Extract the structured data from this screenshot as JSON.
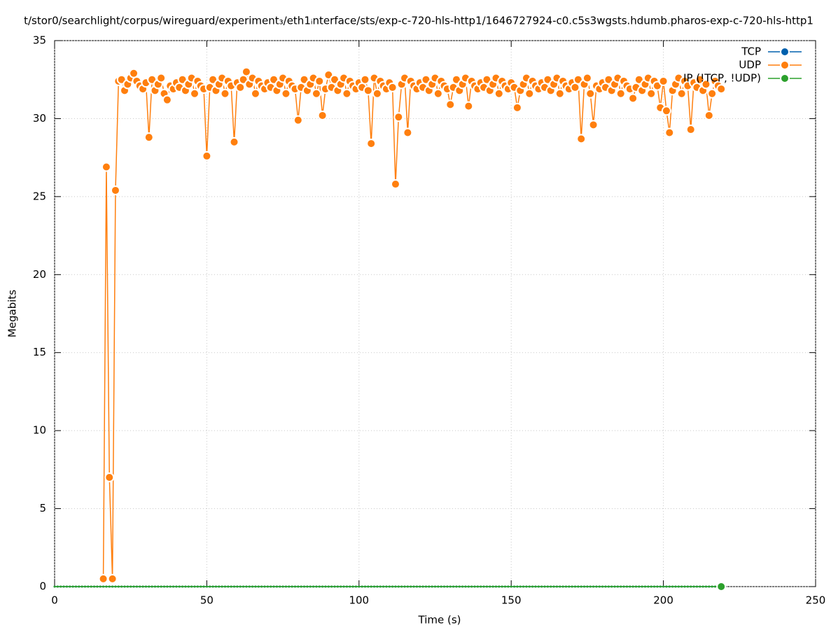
{
  "chart_data": {
    "type": "line",
    "title": "t/stor0/searchlight/corpus/wireguard/experiment₃/eth1ᵢnterface/sts/exp-c-720-hls-http1/1646727924-c0.c5s3wgsts.hdumb.pharos-exp-c-720-hls-http1",
    "xlabel": "Time (s)",
    "ylabel": "Megabits",
    "xlim": [
      0,
      250
    ],
    "xticks": [
      0,
      50,
      100,
      150,
      200,
      250
    ],
    "ylim": [
      0,
      35
    ],
    "yticks": [
      0,
      5,
      10,
      15,
      20,
      25,
      30,
      35
    ],
    "grid": true,
    "legend": "top-right",
    "x": [
      0,
      1,
      2,
      3,
      4,
      5,
      6,
      7,
      8,
      9,
      10,
      11,
      12,
      13,
      14,
      15,
      16,
      17,
      18,
      19,
      20,
      21,
      22,
      23,
      24,
      25,
      26,
      27,
      28,
      29,
      30,
      31,
      32,
      33,
      34,
      35,
      36,
      37,
      38,
      39,
      40,
      41,
      42,
      43,
      44,
      45,
      46,
      47,
      48,
      49,
      50,
      51,
      52,
      53,
      54,
      55,
      56,
      57,
      58,
      59,
      60,
      61,
      62,
      63,
      64,
      65,
      66,
      67,
      68,
      69,
      70,
      71,
      72,
      73,
      74,
      75,
      76,
      77,
      78,
      79,
      80,
      81,
      82,
      83,
      84,
      85,
      86,
      87,
      88,
      89,
      90,
      91,
      92,
      93,
      94,
      95,
      96,
      97,
      98,
      99,
      100,
      101,
      102,
      103,
      104,
      105,
      106,
      107,
      108,
      109,
      110,
      111,
      112,
      113,
      114,
      115,
      116,
      117,
      118,
      119,
      120,
      121,
      122,
      123,
      124,
      125,
      126,
      127,
      128,
      129,
      130,
      131,
      132,
      133,
      134,
      135,
      136,
      137,
      138,
      139,
      140,
      141,
      142,
      143,
      144,
      145,
      146,
      147,
      148,
      149,
      150,
      151,
      152,
      153,
      154,
      155,
      156,
      157,
      158,
      159,
      160,
      161,
      162,
      163,
      164,
      165,
      166,
      167,
      168,
      169,
      170,
      171,
      172,
      173,
      174,
      175,
      176,
      177,
      178,
      179,
      180,
      181,
      182,
      183,
      184,
      185,
      186,
      187,
      188,
      189,
      190,
      191,
      192,
      193,
      194,
      195,
      196,
      197,
      198,
      199,
      200,
      201,
      202,
      203,
      204,
      205,
      206,
      207,
      208,
      209,
      210,
      211,
      212,
      213,
      214,
      215,
      216,
      217,
      218,
      219
    ],
    "series": [
      {
        "name": "TCP",
        "color": "#0060ad",
        "values": [
          0,
          0,
          0,
          0,
          0,
          0,
          0,
          0,
          0,
          0,
          0,
          0,
          0,
          0,
          0,
          0,
          0,
          0,
          0,
          0,
          0,
          0,
          0,
          0,
          0,
          0,
          0,
          0,
          0,
          0,
          0,
          0,
          0,
          0,
          0,
          0,
          0,
          0,
          0,
          0,
          0,
          0,
          0,
          0,
          0,
          0,
          0,
          0,
          0,
          0,
          0,
          0,
          0,
          0,
          0,
          0,
          0,
          0,
          0,
          0,
          0,
          0,
          0,
          0,
          0,
          0,
          0,
          0,
          0,
          0,
          0,
          0,
          0,
          0,
          0,
          0,
          0,
          0,
          0,
          0,
          0,
          0,
          0,
          0,
          0,
          0,
          0,
          0,
          0,
          0,
          0,
          0,
          0,
          0,
          0,
          0,
          0,
          0,
          0,
          0,
          0,
          0,
          0,
          0,
          0,
          0,
          0,
          0,
          0,
          0,
          0,
          0,
          0,
          0,
          0,
          0,
          0,
          0,
          0,
          0,
          0,
          0,
          0,
          0,
          0,
          0,
          0,
          0,
          0,
          0,
          0,
          0,
          0,
          0,
          0,
          0,
          0,
          0,
          0,
          0,
          0,
          0,
          0,
          0,
          0,
          0,
          0,
          0,
          0,
          0,
          0,
          0,
          0,
          0,
          0,
          0,
          0,
          0,
          0,
          0,
          0,
          0,
          0,
          0,
          0,
          0,
          0,
          0,
          0,
          0,
          0,
          0,
          0,
          0,
          0,
          0,
          0,
          0,
          0,
          0,
          0,
          0,
          0,
          0,
          0,
          0,
          0,
          0,
          0,
          0,
          0,
          0,
          0,
          0,
          0,
          0,
          0,
          0,
          0,
          0,
          0,
          0,
          0,
          0,
          0,
          0,
          0,
          0,
          0,
          0,
          0,
          0,
          0,
          0,
          0,
          0,
          0,
          0,
          0,
          0
        ]
      },
      {
        "name": "UDP",
        "color": "#ff7f0e",
        "values": [
          null,
          null,
          null,
          null,
          null,
          null,
          null,
          null,
          null,
          null,
          null,
          null,
          null,
          null,
          null,
          null,
          0.5,
          26.9,
          7.0,
          0.5,
          25.4,
          32.4,
          32.5,
          31.8,
          32.2,
          32.6,
          32.9,
          32.4,
          32.1,
          31.9,
          32.3,
          28.8,
          32.5,
          31.8,
          32.2,
          32.6,
          31.6,
          31.2,
          32.1,
          31.9,
          32.3,
          32.0,
          32.5,
          31.8,
          32.2,
          32.6,
          31.6,
          32.4,
          32.1,
          31.9,
          27.6,
          32.0,
          32.5,
          31.8,
          32.2,
          32.6,
          31.6,
          32.4,
          32.1,
          28.5,
          32.3,
          32.0,
          32.5,
          33.0,
          32.2,
          32.6,
          31.6,
          32.4,
          32.1,
          31.9,
          32.3,
          32.0,
          32.5,
          31.8,
          32.2,
          32.6,
          31.6,
          32.4,
          32.1,
          31.9,
          29.9,
          32.0,
          32.5,
          31.8,
          32.2,
          32.6,
          31.6,
          32.4,
          30.2,
          31.9,
          32.8,
          32.0,
          32.5,
          31.8,
          32.2,
          32.6,
          31.6,
          32.4,
          32.1,
          31.9,
          32.3,
          32.0,
          32.5,
          31.8,
          28.4,
          32.6,
          31.6,
          32.4,
          32.1,
          31.9,
          32.3,
          32.0,
          25.8,
          30.1,
          32.2,
          32.6,
          29.1,
          32.4,
          32.1,
          31.9,
          32.3,
          32.0,
          32.5,
          31.8,
          32.2,
          32.6,
          31.6,
          32.4,
          32.1,
          31.9,
          30.9,
          32.0,
          32.5,
          31.8,
          32.2,
          32.6,
          30.8,
          32.4,
          32.1,
          31.9,
          32.3,
          32.0,
          32.5,
          31.8,
          32.2,
          32.6,
          31.6,
          32.4,
          32.1,
          31.9,
          32.3,
          32.0,
          30.7,
          31.8,
          32.2,
          32.6,
          31.6,
          32.4,
          32.1,
          31.9,
          32.3,
          32.0,
          32.5,
          31.8,
          32.2,
          32.6,
          31.6,
          32.4,
          32.1,
          31.9,
          32.3,
          32.0,
          32.5,
          28.7,
          32.2,
          32.6,
          31.6,
          29.6,
          32.1,
          31.9,
          32.3,
          32.0,
          32.5,
          31.8,
          32.2,
          32.6,
          31.6,
          32.4,
          32.1,
          31.9,
          31.3,
          32.0,
          32.5,
          31.8,
          32.2,
          32.6,
          31.6,
          32.4,
          32.1,
          30.7,
          32.4,
          30.5,
          29.1,
          31.8,
          32.2,
          32.6,
          31.6,
          32.4,
          32.1,
          29.3,
          32.3,
          32.0,
          32.5,
          31.8,
          32.2,
          30.2,
          31.6,
          32.4,
          32.1,
          31.9
        ]
      },
      {
        "name": "IP (!TCP, !UDP)",
        "color": "#2ca02c",
        "values": [
          0,
          0,
          0,
          0,
          0,
          0,
          0,
          0,
          0,
          0,
          0,
          0,
          0,
          0,
          0,
          0,
          0,
          0,
          0,
          0,
          0,
          0,
          0,
          0,
          0,
          0,
          0,
          0,
          0,
          0,
          0,
          0,
          0,
          0,
          0,
          0,
          0,
          0,
          0,
          0,
          0,
          0,
          0,
          0,
          0,
          0,
          0,
          0,
          0,
          0,
          0,
          0,
          0,
          0,
          0,
          0,
          0,
          0,
          0,
          0,
          0,
          0,
          0,
          0,
          0,
          0,
          0,
          0,
          0,
          0,
          0,
          0,
          0,
          0,
          0,
          0,
          0,
          0,
          0,
          0,
          0,
          0,
          0,
          0,
          0,
          0,
          0,
          0,
          0,
          0,
          0,
          0,
          0,
          0,
          0,
          0,
          0,
          0,
          0,
          0,
          0,
          0,
          0,
          0,
          0,
          0,
          0,
          0,
          0,
          0,
          0,
          0,
          0,
          0,
          0,
          0,
          0,
          0,
          0,
          0,
          0,
          0,
          0,
          0,
          0,
          0,
          0,
          0,
          0,
          0,
          0,
          0,
          0,
          0,
          0,
          0,
          0,
          0,
          0,
          0,
          0,
          0,
          0,
          0,
          0,
          0,
          0,
          0,
          0,
          0,
          0,
          0,
          0,
          0,
          0,
          0,
          0,
          0,
          0,
          0,
          0,
          0,
          0,
          0,
          0,
          0,
          0,
          0,
          0,
          0,
          0,
          0,
          0,
          0,
          0,
          0,
          0,
          0,
          0,
          0,
          0,
          0,
          0,
          0,
          0,
          0,
          0,
          0,
          0,
          0,
          0,
          0,
          0,
          0,
          0,
          0,
          0,
          0,
          0,
          0,
          0,
          0,
          0,
          0,
          0,
          0,
          0,
          0,
          0,
          0,
          0,
          0,
          0,
          0,
          0,
          0,
          0,
          0,
          0,
          0
        ]
      }
    ]
  }
}
